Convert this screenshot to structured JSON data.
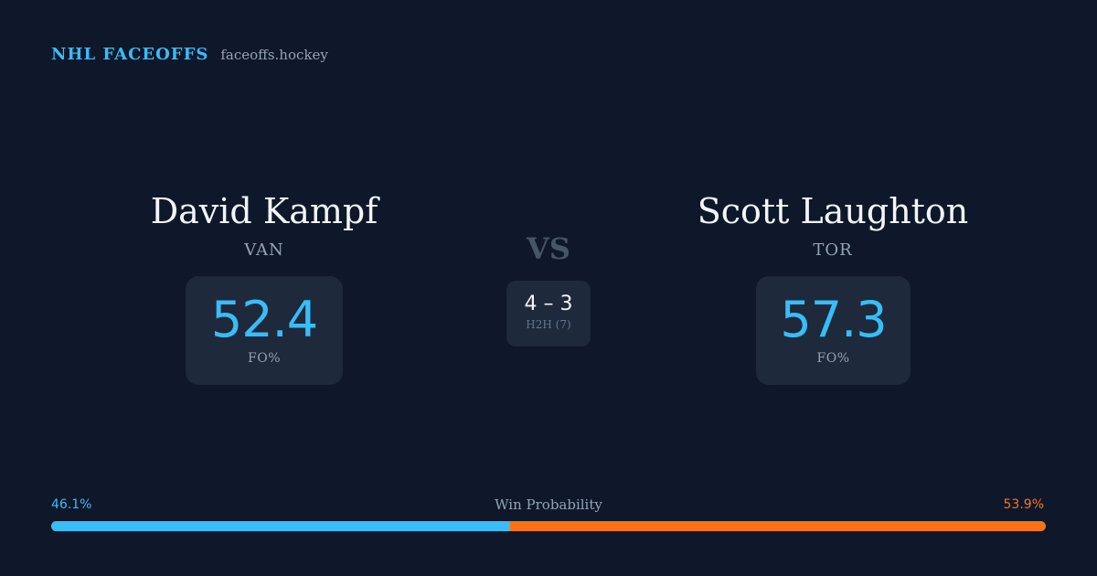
{
  "header": {
    "title": "NHL FACEOFFS",
    "domain": "faceoffs.hockey"
  },
  "players": {
    "left": {
      "name": "David Kampf",
      "team": "VAN",
      "fo_pct": "52.4",
      "fo_label": "FO%"
    },
    "right": {
      "name": "Scott Laughton",
      "team": "TOR",
      "fo_pct": "57.3",
      "fo_label": "FO%"
    }
  },
  "versus": {
    "text": "VS",
    "h2h_score": "4 – 3",
    "h2h_label": "H2H (7)"
  },
  "win_probability": {
    "title": "Win Probability",
    "left_label": "46.1%",
    "right_label": "53.9%",
    "left_fraction": 0.461,
    "right_fraction": 0.539
  },
  "colors": {
    "background": "#0f172a",
    "card": "#1e293b",
    "left_accent": "#38bdf8",
    "right_accent": "#f97316",
    "muted": "#94a3b8"
  }
}
